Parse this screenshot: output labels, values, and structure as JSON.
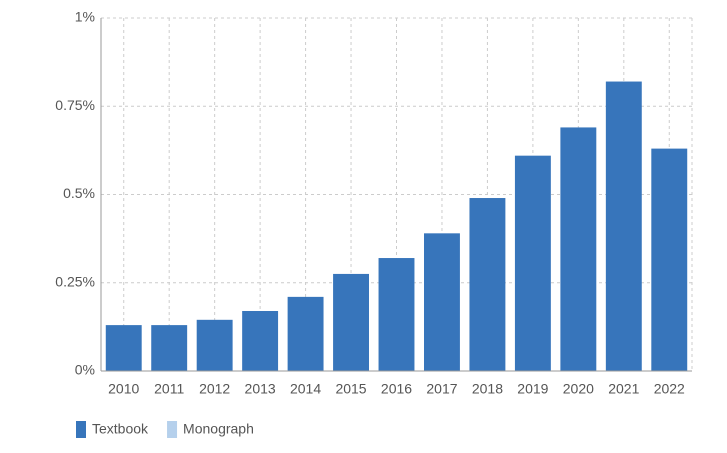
{
  "chart_data": {
    "type": "bar",
    "categories": [
      "2010",
      "2011",
      "2012",
      "2013",
      "2014",
      "2015",
      "2016",
      "2017",
      "2018",
      "2019",
      "2020",
      "2021",
      "2022"
    ],
    "series": [
      {
        "name": "Textbook",
        "color": "#3775bb",
        "values": [
          0.13,
          0.13,
          0.145,
          0.17,
          0.21,
          0.275,
          0.32,
          0.39,
          0.49,
          0.61,
          0.69,
          0.82,
          0.63
        ]
      },
      {
        "name": "Monograph",
        "color": "#b5d0ec",
        "values": [
          null,
          null,
          null,
          null,
          null,
          null,
          null,
          null,
          null,
          null,
          null,
          null,
          null
        ]
      }
    ],
    "ylim": [
      0,
      1
    ],
    "yticks": [
      {
        "value": 0,
        "label": "0%"
      },
      {
        "value": 0.25,
        "label": "0.25%"
      },
      {
        "value": 0.5,
        "label": "0.5%"
      },
      {
        "value": 0.75,
        "label": "0.75%"
      },
      {
        "value": 1,
        "label": "1%"
      }
    ],
    "grid": true,
    "legend": "bottom-left"
  }
}
